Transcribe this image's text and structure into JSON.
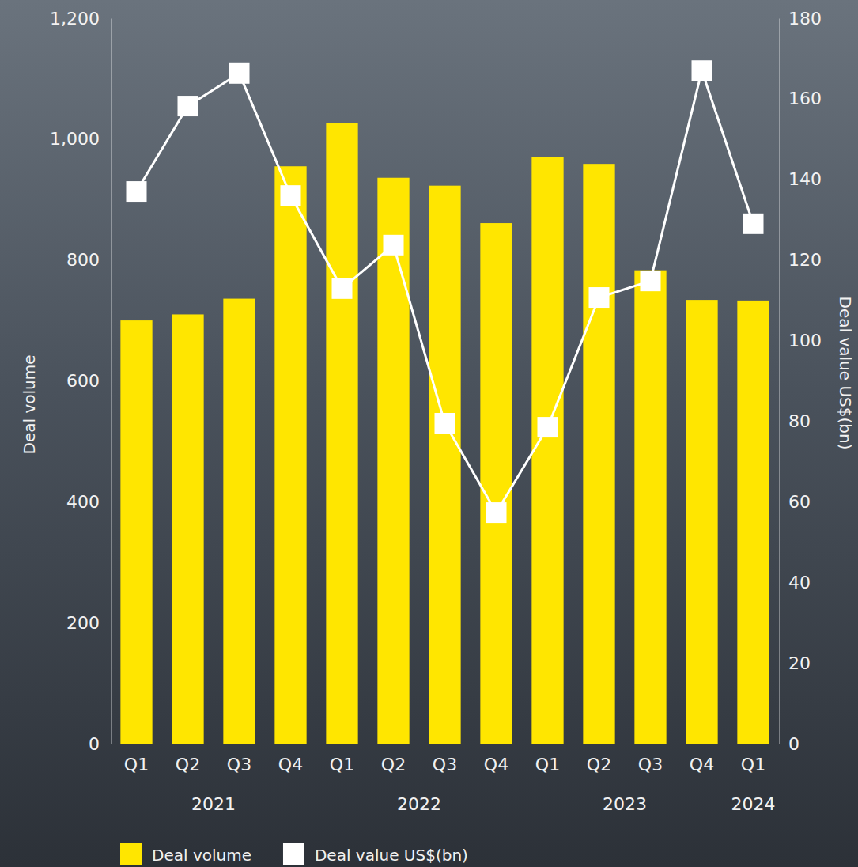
{
  "chart_data": {
    "type": "bar",
    "categories": [
      "Q1",
      "Q2",
      "Q3",
      "Q4",
      "Q1",
      "Q2",
      "Q3",
      "Q4",
      "Q1",
      "Q2",
      "Q3",
      "Q4",
      "Q1"
    ],
    "x_groups": [
      {
        "label": "2021",
        "count": 4
      },
      {
        "label": "2022",
        "count": 4
      },
      {
        "label": "2023",
        "count": 4
      },
      {
        "label": "2024",
        "count": 1
      }
    ],
    "series": [
      {
        "name": "Deal volume",
        "type": "bar",
        "color": "#ffe600",
        "values": [
          700,
          710,
          736,
          955,
          1026,
          936,
          923,
          861,
          971,
          959,
          783,
          734,
          733
        ]
      },
      {
        "name": "Deal value US$(bn)",
        "type": "line",
        "axis": "y2",
        "color": "#ffffff",
        "marker": "square",
        "values": [
          137,
          158.2,
          166.3,
          136,
          112.9,
          123.7,
          79.5,
          57.3,
          78.5,
          110.7,
          114.8,
          167,
          129
        ]
      }
    ],
    "y_label": "Deal volume",
    "y2_label": "Deal value US$(bn)",
    "ylim": [
      0,
      1200
    ],
    "yticks": [
      0,
      200,
      400,
      600,
      800,
      {
        "value": 1000,
        "label": "1,000"
      },
      {
        "value": 1200,
        "label": "1,200"
      }
    ],
    "y2lim": [
      0,
      180
    ],
    "y2ticks": [
      0,
      20,
      40,
      60,
      80,
      100,
      120,
      140,
      160,
      180
    ],
    "grid": false,
    "legend": "bottom"
  }
}
